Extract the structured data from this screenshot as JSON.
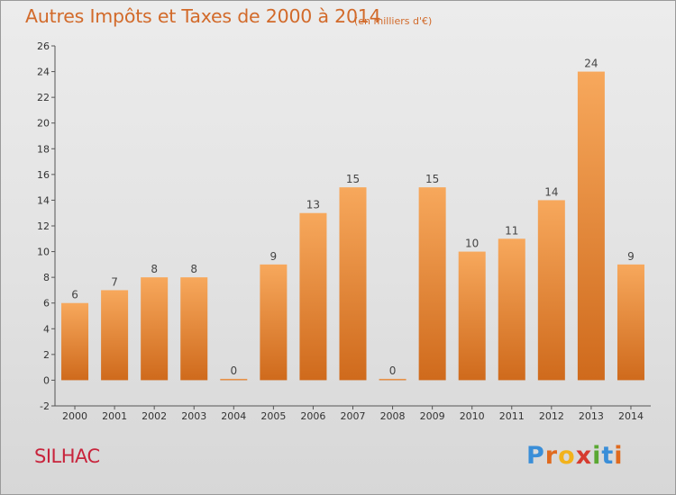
{
  "header": {
    "title": "Autres Impôts et Taxes de 2000 à 2014",
    "unit": "(en milliers d'€)"
  },
  "footer": {
    "commune": "SILHAC",
    "logo_letters": [
      "P",
      "r",
      "o",
      "x",
      "i",
      "t",
      "i"
    ],
    "logo_colors": [
      "#3a8ed8",
      "#e06a1e",
      "#f2b21b",
      "#d63b2f",
      "#5aa832",
      "#3a8ed8",
      "#e06a1e"
    ]
  },
  "chart_data": {
    "type": "bar",
    "title": "Autres Impôts et Taxes de 2000 à 2014",
    "subtitle": "(en milliers d'€)",
    "categories": [
      "2000",
      "2001",
      "2002",
      "2003",
      "2004",
      "2005",
      "2006",
      "2007",
      "2008",
      "2009",
      "2010",
      "2011",
      "2012",
      "2013",
      "2014"
    ],
    "values": [
      6,
      7,
      8,
      8,
      0,
      9,
      13,
      15,
      0,
      15,
      10,
      11,
      14,
      24,
      9
    ],
    "ylim": [
      -2,
      26
    ],
    "yticks": [
      -2,
      0,
      2,
      4,
      6,
      8,
      10,
      12,
      14,
      16,
      18,
      20,
      22,
      24,
      26
    ],
    "grid": false,
    "bar_color_top": "#f7a85c",
    "bar_color_bottom": "#cf6a1c"
  }
}
